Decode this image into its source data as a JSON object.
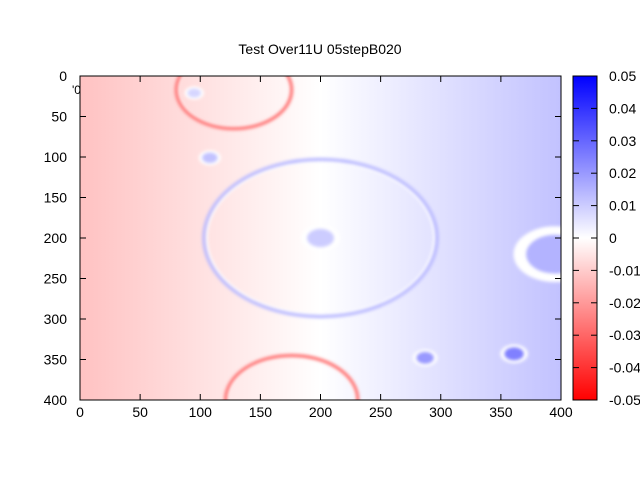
{
  "chart_data": {
    "type": "heatmap",
    "title": "Test Over11U 05stepB020",
    "series_key": "'0",
    "xlim": [
      0,
      400
    ],
    "ylim": [
      0,
      400
    ],
    "y_inverted": true,
    "x_ticks": [
      0,
      50,
      100,
      150,
      200,
      250,
      300,
      350,
      400
    ],
    "y_ticks": [
      0,
      50,
      100,
      150,
      200,
      250,
      300,
      350,
      400
    ],
    "colorbar": {
      "min": -0.05,
      "max": 0.05,
      "ticks": [
        "0.05",
        "0.04",
        "0.03",
        "0.02",
        "0.01",
        "0",
        "-0.01",
        "-0.02",
        "-0.03",
        "-0.04",
        "-0.05"
      ],
      "low_color": "#ff0000",
      "mid_color": "#ffffff",
      "high_color": "#0000ff"
    },
    "background_gradient": {
      "left_value": -0.012,
      "right_value": 0.012
    },
    "features": [
      {
        "kind": "ring",
        "cx": 200,
        "cy": 200,
        "r": 97,
        "value": 0.015
      },
      {
        "kind": "ring",
        "cx": 128,
        "cy": 17,
        "r": 48,
        "value": -0.03
      },
      {
        "kind": "ring",
        "cx": 176,
        "cy": 400,
        "r": 55,
        "value": -0.03
      },
      {
        "kind": "spot",
        "cx": 200,
        "cy": 200,
        "r": 14,
        "value": 0.01
      },
      {
        "kind": "spot",
        "cx": 108,
        "cy": 101,
        "r": 8,
        "value": 0.012
      },
      {
        "kind": "spot",
        "cx": 95,
        "cy": 21,
        "r": 7,
        "value": 0.008
      },
      {
        "kind": "spot",
        "cx": 287,
        "cy": 348,
        "r": 9,
        "value": 0.02
      },
      {
        "kind": "spot",
        "cx": 361,
        "cy": 343,
        "r": 10,
        "value": 0.025
      },
      {
        "kind": "spot",
        "cx": 395,
        "cy": 220,
        "r": 30,
        "value": 0.015
      }
    ]
  }
}
